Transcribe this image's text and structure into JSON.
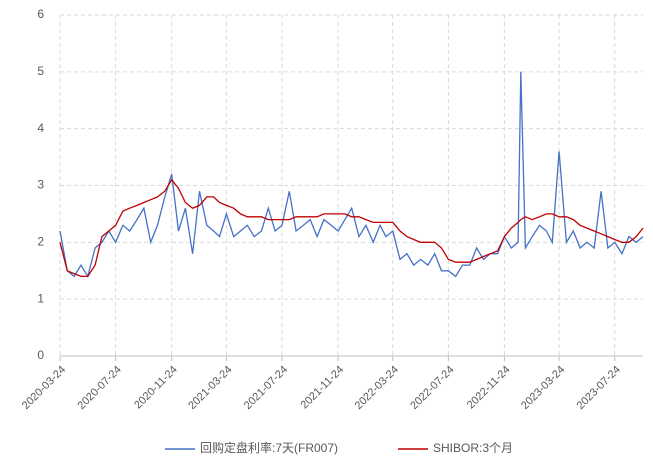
{
  "chart_data": {
    "type": "line",
    "x": [
      "2020-03-24",
      "2020-04-09",
      "2020-04-24",
      "2020-05-09",
      "2020-05-24",
      "2020-06-09",
      "2020-06-24",
      "2020-07-09",
      "2020-07-24",
      "2020-08-09",
      "2020-08-24",
      "2020-09-09",
      "2020-09-24",
      "2020-10-09",
      "2020-10-24",
      "2020-11-09",
      "2020-11-24",
      "2020-12-09",
      "2020-12-24",
      "2021-01-09",
      "2021-01-24",
      "2021-02-09",
      "2021-02-24",
      "2021-03-09",
      "2021-03-24",
      "2021-04-09",
      "2021-04-24",
      "2021-05-09",
      "2021-05-24",
      "2021-06-09",
      "2021-06-24",
      "2021-07-09",
      "2021-07-24",
      "2021-08-09",
      "2021-08-24",
      "2021-09-09",
      "2021-09-24",
      "2021-10-09",
      "2021-10-24",
      "2021-11-09",
      "2021-11-24",
      "2021-12-09",
      "2021-12-24",
      "2022-01-09",
      "2022-01-24",
      "2022-02-09",
      "2022-02-24",
      "2022-03-09",
      "2022-03-24",
      "2022-04-09",
      "2022-04-24",
      "2022-05-09",
      "2022-05-24",
      "2022-06-09",
      "2022-06-24",
      "2022-07-09",
      "2022-07-24",
      "2022-08-09",
      "2022-08-24",
      "2022-09-09",
      "2022-09-24",
      "2022-10-09",
      "2022-10-24",
      "2022-11-09",
      "2022-11-24",
      "2022-12-09",
      "2022-12-24",
      "2022-12-30",
      "2023-01-09",
      "2023-01-24",
      "2023-02-09",
      "2023-02-24",
      "2023-03-09",
      "2023-03-24",
      "2023-04-09",
      "2023-04-24",
      "2023-05-09",
      "2023-05-24",
      "2023-06-09",
      "2023-06-24",
      "2023-07-09",
      "2023-07-24",
      "2023-08-09",
      "2023-08-24",
      "2023-09-09",
      "2023-09-24"
    ],
    "series": [
      {
        "name": "回购定盘利率:7天(FR007)",
        "color": "#4472c4",
        "values": [
          2.2,
          1.5,
          1.4,
          1.6,
          1.4,
          1.9,
          2.0,
          2.2,
          2.0,
          2.3,
          2.2,
          2.4,
          2.6,
          2.0,
          2.3,
          2.8,
          3.2,
          2.2,
          2.6,
          1.8,
          2.9,
          2.3,
          2.2,
          2.1,
          2.5,
          2.1,
          2.2,
          2.3,
          2.1,
          2.2,
          2.6,
          2.2,
          2.3,
          2.9,
          2.2,
          2.3,
          2.4,
          2.1,
          2.4,
          2.3,
          2.2,
          2.4,
          2.6,
          2.1,
          2.3,
          2.0,
          2.3,
          2.1,
          2.2,
          1.7,
          1.8,
          1.6,
          1.7,
          1.6,
          1.8,
          1.5,
          1.5,
          1.4,
          1.6,
          1.6,
          1.9,
          1.7,
          1.8,
          1.8,
          2.1,
          1.9,
          2.0,
          5.0,
          1.9,
          2.1,
          2.3,
          2.2,
          2.0,
          3.6,
          2.0,
          2.2,
          1.9,
          2.0,
          1.9,
          2.9,
          1.9,
          2.0,
          1.8,
          2.1,
          2.0,
          2.1
        ]
      },
      {
        "name": "SHIBOR:3个月",
        "color": "#c00000",
        "values": [
          2.0,
          1.5,
          1.45,
          1.4,
          1.4,
          1.6,
          2.1,
          2.2,
          2.3,
          2.55,
          2.6,
          2.65,
          2.7,
          2.75,
          2.8,
          2.9,
          3.1,
          2.95,
          2.7,
          2.6,
          2.65,
          2.8,
          2.8,
          2.7,
          2.65,
          2.6,
          2.5,
          2.45,
          2.45,
          2.45,
          2.4,
          2.4,
          2.4,
          2.4,
          2.45,
          2.45,
          2.45,
          2.45,
          2.5,
          2.5,
          2.5,
          2.5,
          2.45,
          2.45,
          2.4,
          2.35,
          2.35,
          2.35,
          2.35,
          2.2,
          2.1,
          2.05,
          2.0,
          2.0,
          2.0,
          1.9,
          1.7,
          1.65,
          1.65,
          1.65,
          1.7,
          1.75,
          1.8,
          1.85,
          2.1,
          2.25,
          2.35,
          2.4,
          2.45,
          2.4,
          2.45,
          2.5,
          2.5,
          2.45,
          2.45,
          2.4,
          2.3,
          2.25,
          2.2,
          2.15,
          2.1,
          2.05,
          2.0,
          2.0,
          2.1,
          2.25
        ]
      }
    ],
    "xlim": [
      "2020-03-24",
      "2023-09-24"
    ],
    "xticks": [
      "2020-03-24",
      "2020-07-24",
      "2020-11-24",
      "2021-03-24",
      "2021-07-24",
      "2021-11-24",
      "2022-03-24",
      "2022-07-24",
      "2022-11-24",
      "2023-03-24",
      "2023-07-24"
    ],
    "ylim": [
      0,
      6
    ],
    "yticks": [
      0,
      1,
      2,
      3,
      4,
      5,
      6
    ],
    "grid": true,
    "legend": "bottom"
  }
}
